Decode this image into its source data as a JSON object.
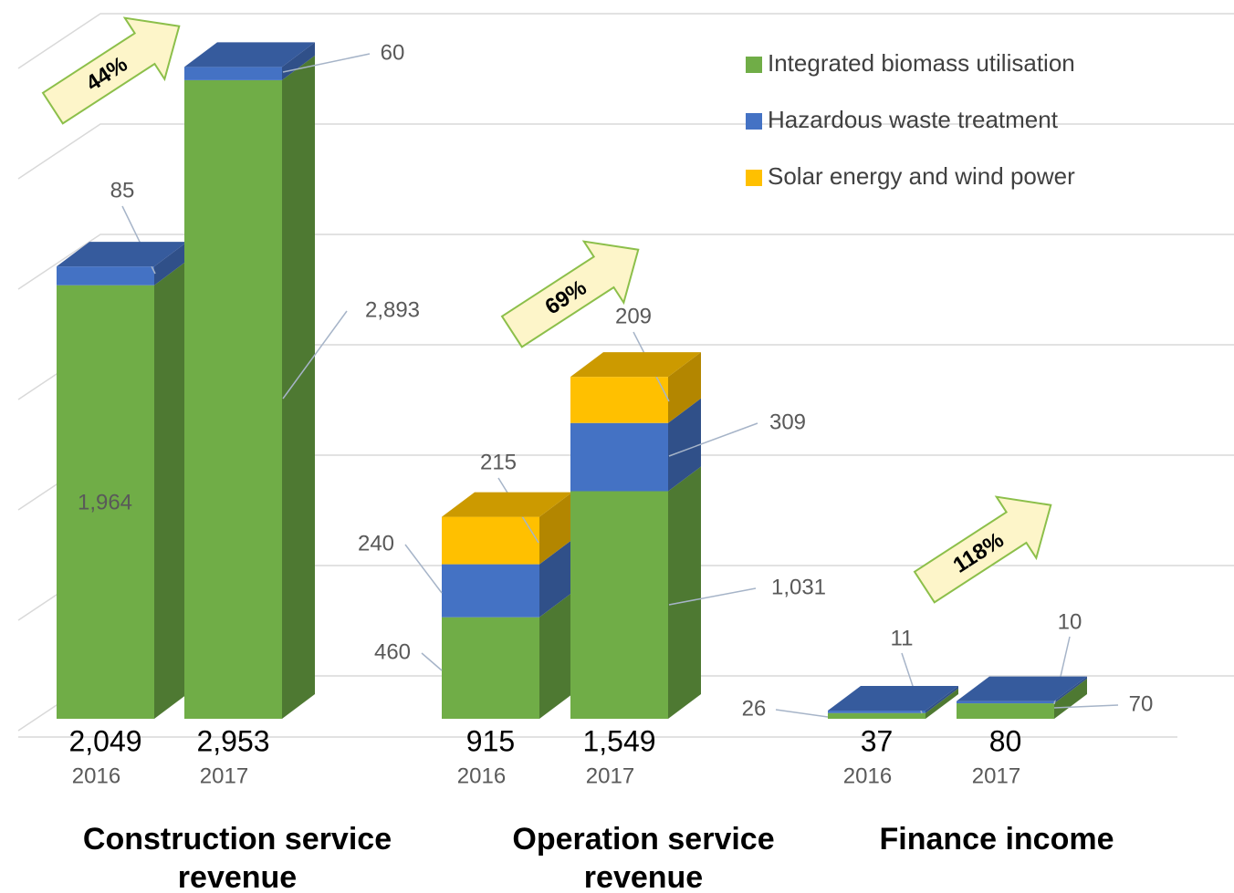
{
  "chart_data": {
    "type": "bar3d_stacked",
    "groups": [
      {
        "name": "Construction service revenue",
        "categories": [
          "2016",
          "2017"
        ],
        "totals": [
          2049,
          2953
        ],
        "total_labels": [
          "2,049",
          "2,953"
        ],
        "growth": 44,
        "growth_label": "44%"
      },
      {
        "name": "Operation service revenue",
        "categories": [
          "2016",
          "2017"
        ],
        "totals": [
          915,
          1549
        ],
        "total_labels": [
          "915",
          "1,549"
        ],
        "growth": 69,
        "growth_label": "69%"
      },
      {
        "name": "Finance income",
        "categories": [
          "2016",
          "2017"
        ],
        "totals": [
          37,
          80
        ],
        "total_labels": [
          "37",
          "80"
        ],
        "growth": 118,
        "growth_label": "118%"
      }
    ],
    "series": [
      {
        "name": "Integrated biomass utilisation",
        "color": "#70ad47",
        "values": [
          1964,
          2893,
          460,
          1031,
          26,
          70
        ],
        "value_labels": [
          "1,964",
          "2,893",
          "460",
          "1,031",
          "26",
          "70"
        ]
      },
      {
        "name": "Hazardous waste treatment",
        "color": "#4472c4",
        "values": [
          85,
          60,
          240,
          309,
          11,
          10
        ],
        "value_labels": [
          "85",
          "60",
          "240",
          "309",
          "11",
          "10"
        ]
      },
      {
        "name": "Solar energy and wind power",
        "color": "#ffc000",
        "values": [
          null,
          null,
          215,
          209,
          null,
          null
        ],
        "value_labels": [
          null,
          null,
          "215",
          "209",
          null,
          null
        ]
      }
    ],
    "ylim": [
      0,
      3000
    ],
    "gridlines": [
      0,
      500,
      1000,
      1500,
      2000,
      2500,
      3000
    ],
    "grid": true
  }
}
